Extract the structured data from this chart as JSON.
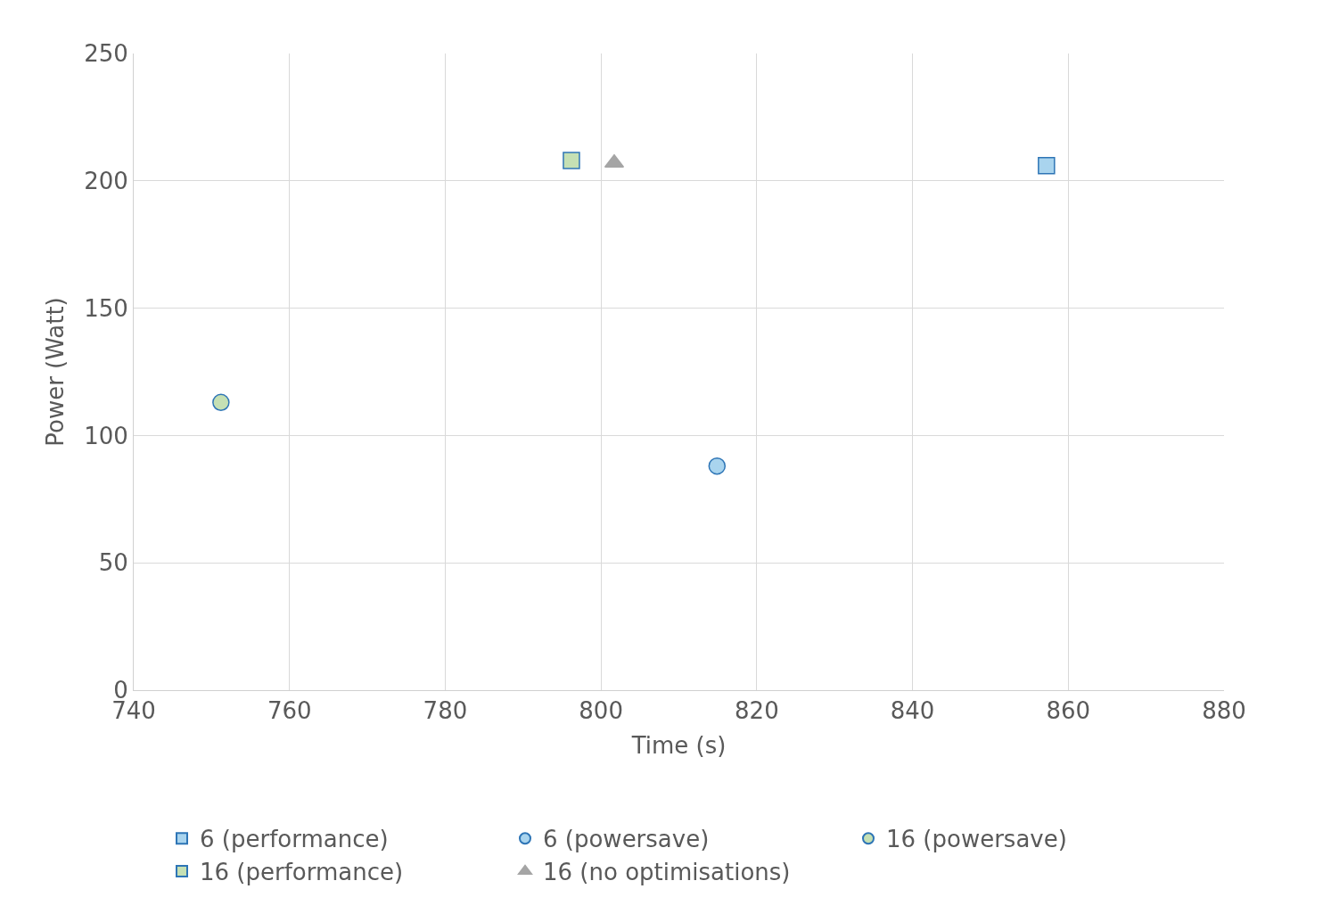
{
  "chart_data": {
    "type": "scatter",
    "xlabel": "Time (s)",
    "ylabel": "Power (Watt)",
    "xlim": [
      740,
      880
    ],
    "xticks": [
      740,
      760,
      780,
      800,
      820,
      840,
      860,
      880
    ],
    "ylim": [
      0,
      250
    ],
    "yticks": [
      0,
      50,
      100,
      150,
      200,
      250
    ],
    "grid": true,
    "legend": "bottom",
    "series": [
      {
        "name": "6 (performance)",
        "color": "#a9d4ee",
        "marker": "square",
        "x": [
          857.2
        ],
        "values": [
          206
        ]
      },
      {
        "name": "6 (powersave)",
        "color": "#a9d4ee",
        "marker": "circle",
        "x": [
          814.9
        ],
        "values": [
          88
        ]
      },
      {
        "name": "16 (powersave)",
        "color": "#c5e0b4",
        "marker": "circle",
        "x": [
          751.2
        ],
        "values": [
          113
        ]
      },
      {
        "name": "16 (performance)",
        "color": "#c5e0b4",
        "marker": "square",
        "x": [
          796.2
        ],
        "values": [
          208
        ]
      },
      {
        "name": "16 (no optimisations)",
        "color": "#a5a5a5",
        "marker": "triangle",
        "x": [
          801.7
        ],
        "values": [
          207
        ]
      }
    ]
  }
}
